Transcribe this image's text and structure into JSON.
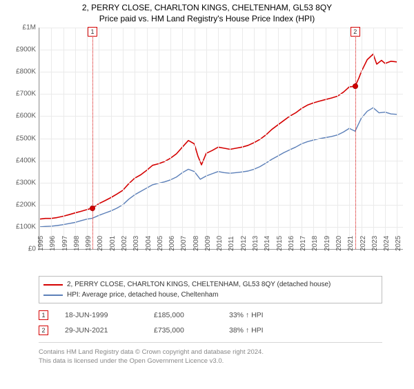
{
  "title": "2, PERRY CLOSE, CHARLTON KINGS, CHELTENHAM, GL53 8QY",
  "subtitle": "Price paid vs. HM Land Registry's House Price Index (HPI)",
  "chart": {
    "type": "line",
    "background_color": "#ffffff",
    "grid_color": "#eaeaea",
    "axis_color": "#9a9a9a",
    "tick_font_size": 10,
    "tick_color": "#5a5a5a",
    "x_range": [
      1995,
      2025.5
    ],
    "y_range": [
      0,
      1000000
    ],
    "y_ticks": [
      {
        "v": 0,
        "label": "£0"
      },
      {
        "v": 100000,
        "label": "£100K"
      },
      {
        "v": 200000,
        "label": "£200K"
      },
      {
        "v": 300000,
        "label": "£300K"
      },
      {
        "v": 400000,
        "label": "£400K"
      },
      {
        "v": 500000,
        "label": "£500K"
      },
      {
        "v": 600000,
        "label": "£600K"
      },
      {
        "v": 700000,
        "label": "£700K"
      },
      {
        "v": 800000,
        "label": "£800K"
      },
      {
        "v": 900000,
        "label": "£900K"
      },
      {
        "v": 1000000,
        "label": "£1M"
      }
    ],
    "x_ticks": [
      1995,
      1996,
      1997,
      1998,
      1999,
      2000,
      2001,
      2002,
      2003,
      2004,
      2005,
      2006,
      2007,
      2008,
      2009,
      2010,
      2011,
      2012,
      2013,
      2014,
      2015,
      2016,
      2017,
      2018,
      2019,
      2020,
      2021,
      2022,
      2023,
      2024,
      2025
    ],
    "series": [
      {
        "id": "property",
        "label": "2, PERRY CLOSE, CHARLTON KINGS, CHELTENHAM, GL53 8QY (detached house)",
        "color": "#d40000",
        "line_width": 1.6,
        "data": [
          [
            1995,
            135000
          ],
          [
            1995.5,
            138000
          ],
          [
            1996,
            138000
          ],
          [
            1996.5,
            142000
          ],
          [
            1997,
            148000
          ],
          [
            1997.5,
            155000
          ],
          [
            1998,
            163000
          ],
          [
            1998.5,
            170000
          ],
          [
            1999,
            178000
          ],
          [
            1999.46,
            185000
          ],
          [
            2000,
            205000
          ],
          [
            2000.5,
            218000
          ],
          [
            2001,
            232000
          ],
          [
            2001.5,
            248000
          ],
          [
            2002,
            265000
          ],
          [
            2002.5,
            295000
          ],
          [
            2003,
            320000
          ],
          [
            2003.5,
            335000
          ],
          [
            2004,
            355000
          ],
          [
            2004.5,
            378000
          ],
          [
            2005,
            385000
          ],
          [
            2005.5,
            395000
          ],
          [
            2006,
            410000
          ],
          [
            2006.5,
            430000
          ],
          [
            2007,
            460000
          ],
          [
            2007.5,
            490000
          ],
          [
            2008,
            475000
          ],
          [
            2008.3,
            420000
          ],
          [
            2008.6,
            380000
          ],
          [
            2009,
            432000
          ],
          [
            2009.5,
            445000
          ],
          [
            2010,
            460000
          ],
          [
            2010.5,
            455000
          ],
          [
            2011,
            450000
          ],
          [
            2011.5,
            455000
          ],
          [
            2012,
            460000
          ],
          [
            2012.5,
            468000
          ],
          [
            2013,
            480000
          ],
          [
            2013.5,
            495000
          ],
          [
            2014,
            515000
          ],
          [
            2014.5,
            540000
          ],
          [
            2015,
            560000
          ],
          [
            2015.5,
            580000
          ],
          [
            2016,
            600000
          ],
          [
            2016.5,
            615000
          ],
          [
            2017,
            635000
          ],
          [
            2017.5,
            650000
          ],
          [
            2018,
            660000
          ],
          [
            2018.5,
            668000
          ],
          [
            2019,
            675000
          ],
          [
            2019.5,
            682000
          ],
          [
            2020,
            690000
          ],
          [
            2020.5,
            708000
          ],
          [
            2021,
            732000
          ],
          [
            2021.49,
            735000
          ],
          [
            2021.8,
            772000
          ],
          [
            2022,
            800000
          ],
          [
            2022.5,
            855000
          ],
          [
            2023,
            880000
          ],
          [
            2023.3,
            835000
          ],
          [
            2023.7,
            852000
          ],
          [
            2024,
            838000
          ],
          [
            2024.5,
            848000
          ],
          [
            2025,
            845000
          ]
        ]
      },
      {
        "id": "hpi",
        "label": "HPI: Average price, detached house, Cheltenham",
        "color": "#5b7fb8",
        "line_width": 1.4,
        "data": [
          [
            1995,
            100000
          ],
          [
            1995.5,
            102000
          ],
          [
            1996,
            103000
          ],
          [
            1996.5,
            106000
          ],
          [
            1997,
            110000
          ],
          [
            1997.5,
            115000
          ],
          [
            1998,
            120000
          ],
          [
            1998.5,
            128000
          ],
          [
            1999,
            135000
          ],
          [
            1999.46,
            139000
          ],
          [
            2000,
            152000
          ],
          [
            2000.5,
            162000
          ],
          [
            2001,
            172000
          ],
          [
            2001.5,
            184000
          ],
          [
            2002,
            200000
          ],
          [
            2002.5,
            225000
          ],
          [
            2003,
            245000
          ],
          [
            2003.5,
            260000
          ],
          [
            2004,
            275000
          ],
          [
            2004.5,
            290000
          ],
          [
            2005,
            297000
          ],
          [
            2005.5,
            303000
          ],
          [
            2006,
            312000
          ],
          [
            2006.5,
            325000
          ],
          [
            2007,
            345000
          ],
          [
            2007.5,
            360000
          ],
          [
            2008,
            350000
          ],
          [
            2008.5,
            315000
          ],
          [
            2009,
            330000
          ],
          [
            2009.5,
            340000
          ],
          [
            2010,
            350000
          ],
          [
            2010.5,
            345000
          ],
          [
            2011,
            342000
          ],
          [
            2011.5,
            345000
          ],
          [
            2012,
            348000
          ],
          [
            2012.5,
            352000
          ],
          [
            2013,
            360000
          ],
          [
            2013.5,
            372000
          ],
          [
            2014,
            388000
          ],
          [
            2014.5,
            405000
          ],
          [
            2015,
            420000
          ],
          [
            2015.5,
            435000
          ],
          [
            2016,
            448000
          ],
          [
            2016.5,
            460000
          ],
          [
            2017,
            475000
          ],
          [
            2017.5,
            485000
          ],
          [
            2018,
            492000
          ],
          [
            2018.5,
            498000
          ],
          [
            2019,
            503000
          ],
          [
            2019.5,
            508000
          ],
          [
            2020,
            515000
          ],
          [
            2020.5,
            528000
          ],
          [
            2021,
            545000
          ],
          [
            2021.49,
            532000
          ],
          [
            2022,
            590000
          ],
          [
            2022.5,
            622000
          ],
          [
            2023,
            638000
          ],
          [
            2023.5,
            615000
          ],
          [
            2024,
            618000
          ],
          [
            2024.5,
            610000
          ],
          [
            2025,
            608000
          ]
        ]
      }
    ],
    "sale_markers": [
      {
        "n": 1,
        "x": 1999.46,
        "y": 185000,
        "color": "#d40000"
      },
      {
        "n": 2,
        "x": 2021.49,
        "y": 735000,
        "color": "#d40000"
      }
    ]
  },
  "legend": {
    "border_color": "#bcbcbc",
    "font_size": 10
  },
  "sales": [
    {
      "n": 1,
      "date": "18-JUN-1999",
      "price": "£185,000",
      "hpi": "33% ↑ HPI",
      "color": "#d40000"
    },
    {
      "n": 2,
      "date": "29-JUN-2021",
      "price": "£735,000",
      "hpi": "38% ↑ HPI",
      "color": "#d40000"
    }
  ],
  "footer": {
    "line1": "Contains HM Land Registry data © Crown copyright and database right 2024.",
    "line2": "This data is licensed under the Open Government Licence v3.0."
  }
}
